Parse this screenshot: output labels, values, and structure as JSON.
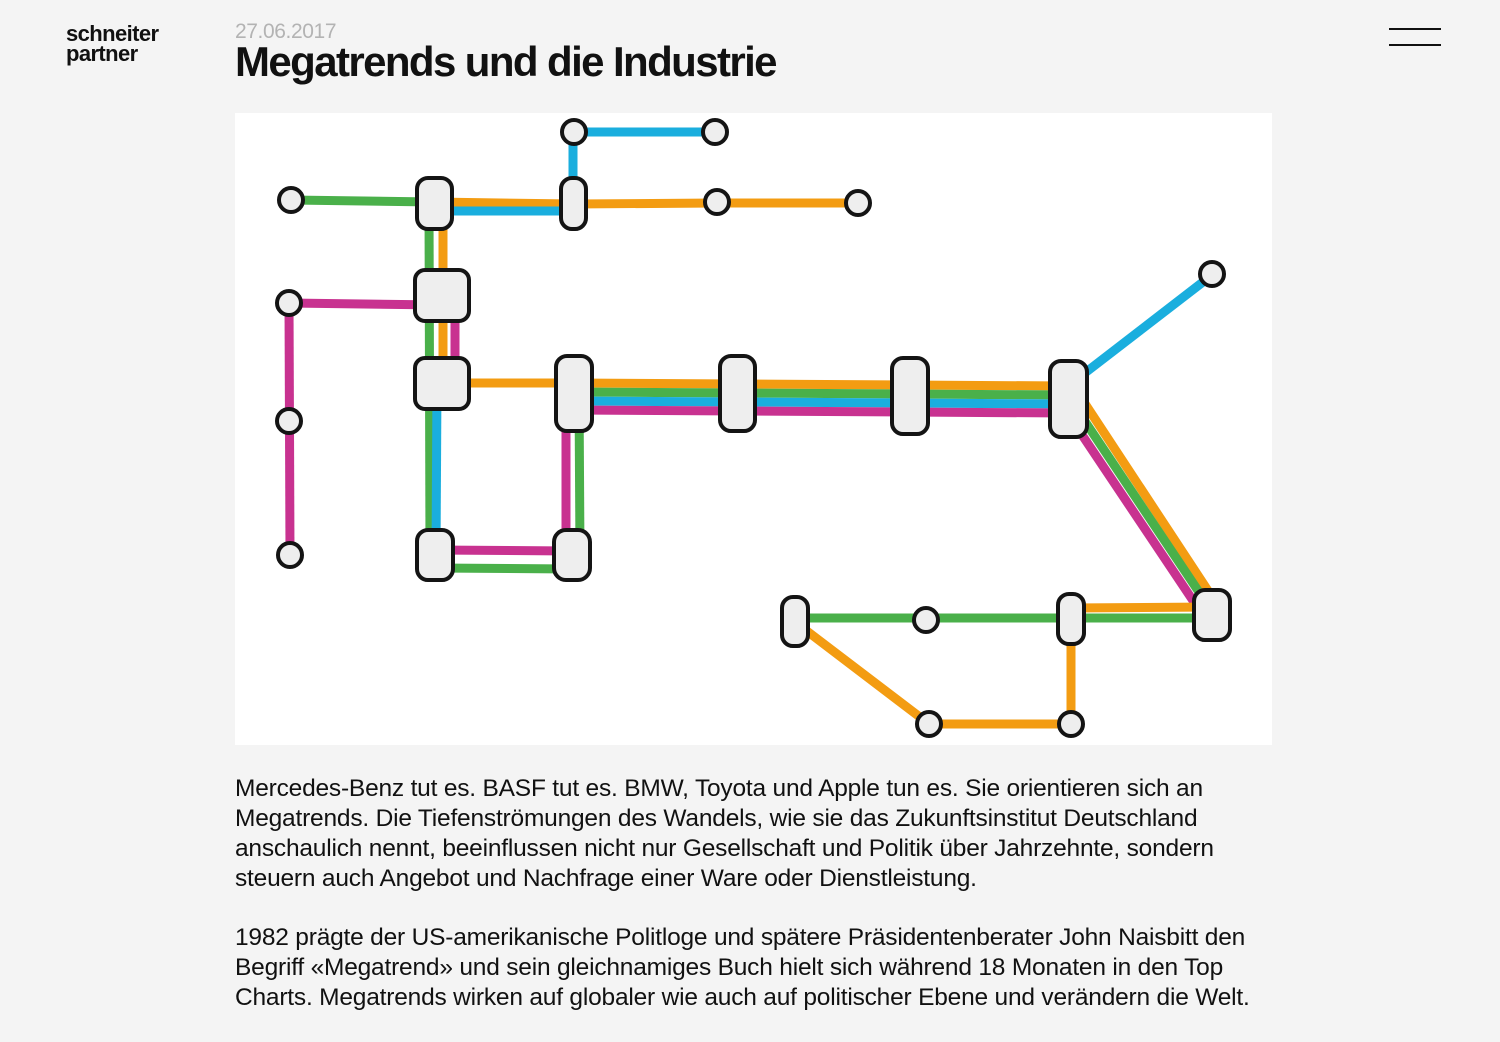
{
  "brand": {
    "line1": "schneiter",
    "line2": "partner"
  },
  "nav": {
    "menu_icon": "hamburger-menu-icon"
  },
  "article": {
    "date": "27.06.2017",
    "title": "Megatrends und die Industrie",
    "illustration": {
      "icon": "metro-map-illustration",
      "line_colors": {
        "green": "#4ab04a",
        "orange": "#f39c12",
        "blue": "#1aaede",
        "magenta": "#c83290"
      },
      "station_color": "#eeeeee",
      "outline_color": "#141414"
    },
    "paragraphs": [
      "Mercedes-Benz tut es. BASF tut es. BMW, Toyota und Apple tun es. Sie orientieren sich an Megatrends. Die Tiefenströmungen des Wandels, wie sie das Zukunftsinstitut Deutschland anschaulich nennt, beeinflussen nicht nur Gesellschaft und Politik über Jahrzehnte, sondern steuern auch Angebot und Nachfrage einer Ware oder Dienstleistung.",
      "1982 prägte der US-amerikanische Politloge und spätere Präsidentenberater John Naisbitt den Begriff «Megatrend» und sein gleichnamiges Buch hielt sich während 18 Monaten in den Top Charts. Megatrends wirken auf globaler wie auch auf politischer Ebene und verändern die Welt."
    ]
  }
}
